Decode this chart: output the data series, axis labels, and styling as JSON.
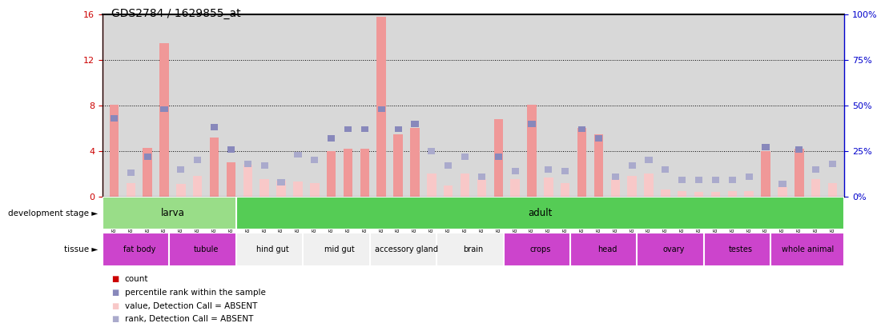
{
  "title": "GDS2784 / 1629855_at",
  "samples": [
    "GSM188092",
    "GSM188093",
    "GSM188094",
    "GSM188095",
    "GSM188100",
    "GSM188101",
    "GSM188102",
    "GSM188103",
    "GSM188072",
    "GSM188073",
    "GSM188074",
    "GSM188075",
    "GSM188076",
    "GSM188077",
    "GSM188078",
    "GSM188079",
    "GSM188080",
    "GSM188081",
    "GSM188082",
    "GSM188083",
    "GSM188084",
    "GSM188085",
    "GSM188086",
    "GSM188087",
    "GSM188088",
    "GSM188089",
    "GSM188090",
    "GSM188091",
    "GSM188096",
    "GSM188097",
    "GSM188098",
    "GSM188099",
    "GSM188104",
    "GSM188105",
    "GSM188106",
    "GSM188107",
    "GSM188108",
    "GSM188109",
    "GSM188110",
    "GSM188111",
    "GSM188112",
    "GSM188113",
    "GSM188114",
    "GSM188115"
  ],
  "count_values": [
    8.1,
    1.2,
    4.3,
    13.5,
    1.1,
    1.8,
    5.2,
    3.0,
    2.8,
    1.5,
    1.4,
    1.3,
    1.2,
    4.0,
    4.2,
    4.2,
    15.8,
    5.5,
    6.0,
    2.0,
    1.0,
    2.0,
    1.5,
    6.8,
    1.5,
    8.1,
    1.7,
    1.2,
    6.0,
    5.5,
    1.5,
    1.8,
    2.0,
    0.6,
    0.5,
    0.4,
    0.4,
    0.5,
    0.5,
    4.0,
    0.8,
    4.2,
    1.5,
    1.2
  ],
  "rank_values": [
    43,
    13,
    22,
    48,
    15,
    20,
    38,
    26,
    18,
    17,
    8,
    23,
    20,
    32,
    37,
    37,
    48,
    37,
    40,
    25,
    17,
    22,
    11,
    22,
    14,
    40,
    15,
    14,
    37,
    32,
    11,
    17,
    20,
    15,
    9,
    9,
    9,
    9,
    11,
    27,
    7,
    26,
    15,
    18
  ],
  "absent_mask": [
    false,
    true,
    false,
    false,
    true,
    true,
    false,
    false,
    true,
    true,
    true,
    true,
    true,
    false,
    false,
    false,
    false,
    false,
    false,
    true,
    true,
    true,
    true,
    false,
    true,
    false,
    true,
    true,
    false,
    false,
    true,
    true,
    true,
    true,
    true,
    true,
    true,
    true,
    true,
    false,
    true,
    false,
    true,
    true
  ],
  "ylim_left": [
    0,
    16
  ],
  "ylim_right": [
    0,
    100
  ],
  "yticks_left": [
    0,
    4,
    8,
    12,
    16
  ],
  "yticks_right": [
    0,
    25,
    50,
    75,
    100
  ],
  "bar_color_present": "#f09898",
  "bar_color_absent": "#f8c8c8",
  "rank_color_present": "#8888bb",
  "rank_color_absent": "#aaaacc",
  "left_axis_color": "#cc0000",
  "right_axis_color": "#0000cc",
  "bg_color": "#d8d8d8",
  "development_stages": [
    {
      "label": "larva",
      "start": 0,
      "end": 8,
      "color": "#99dd88"
    },
    {
      "label": "adult",
      "start": 8,
      "end": 44,
      "color": "#55cc55"
    }
  ],
  "tissues": [
    {
      "label": "fat body",
      "start": 0,
      "end": 4,
      "color": "#cc44cc"
    },
    {
      "label": "tubule",
      "start": 4,
      "end": 8,
      "color": "#cc44cc"
    },
    {
      "label": "hind gut",
      "start": 8,
      "end": 12,
      "color": "#f0f0f0"
    },
    {
      "label": "mid gut",
      "start": 12,
      "end": 16,
      "color": "#f0f0f0"
    },
    {
      "label": "accessory gland",
      "start": 16,
      "end": 20,
      "color": "#f0f0f0"
    },
    {
      "label": "brain",
      "start": 20,
      "end": 24,
      "color": "#f0f0f0"
    },
    {
      "label": "crops",
      "start": 24,
      "end": 28,
      "color": "#cc44cc"
    },
    {
      "label": "head",
      "start": 28,
      "end": 32,
      "color": "#cc44cc"
    },
    {
      "label": "ovary",
      "start": 32,
      "end": 36,
      "color": "#cc44cc"
    },
    {
      "label": "testes",
      "start": 36,
      "end": 40,
      "color": "#cc44cc"
    },
    {
      "label": "whole animal",
      "start": 40,
      "end": 44,
      "color": "#cc44cc"
    }
  ],
  "legend_items": [
    {
      "color": "#cc0000",
      "label": "count"
    },
    {
      "color": "#8888bb",
      "label": "percentile rank within the sample"
    },
    {
      "color": "#f8c8c8",
      "label": "value, Detection Call = ABSENT"
    },
    {
      "color": "#aaaacc",
      "label": "rank, Detection Call = ABSENT"
    }
  ]
}
